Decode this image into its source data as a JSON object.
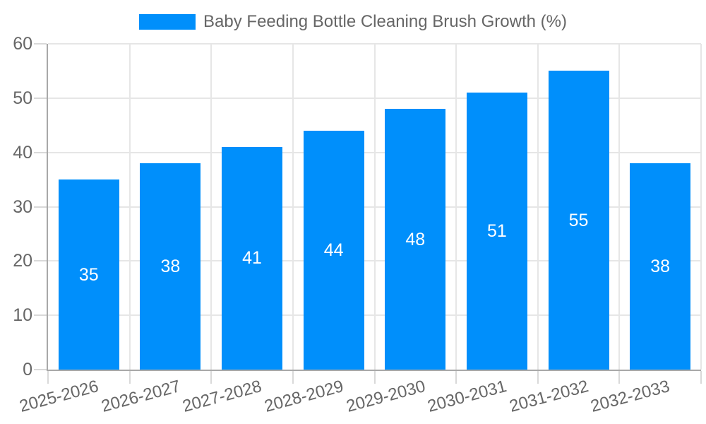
{
  "chart_data": {
    "type": "bar",
    "title": "Baby Feeding Bottle Cleaning Brush Growth (%)",
    "categories": [
      "2025-2026",
      "2026-2027",
      "2027-2028",
      "2028-2029",
      "2029-2030",
      "2030-2031",
      "2031-2032",
      "2032-2033"
    ],
    "series": [
      {
        "name": "Baby Feeding Bottle Cleaning Brush Growth (%)",
        "values": [
          35,
          38,
          41,
          44,
          48,
          51,
          55,
          38
        ]
      }
    ],
    "bar_value_labels": [
      "35",
      "38",
      "41",
      "44",
      "48",
      "51",
      "55",
      "38"
    ],
    "xlabel": "",
    "ylabel": "",
    "ylim": [
      0,
      60
    ],
    "yticks": [
      0,
      10,
      20,
      30,
      40,
      50,
      60
    ],
    "grid": "on",
    "legend_position": "top",
    "x_tick_rotation_deg": -15,
    "colors": {
      "bar": "#008FFB",
      "gridline": "#e6e6e6",
      "tick_mark": "#d9d9d9",
      "axis_line": "#a8a8a8",
      "axis_text": "#666666",
      "bar_label_text": "#ffffff",
      "background": "#ffffff"
    }
  }
}
